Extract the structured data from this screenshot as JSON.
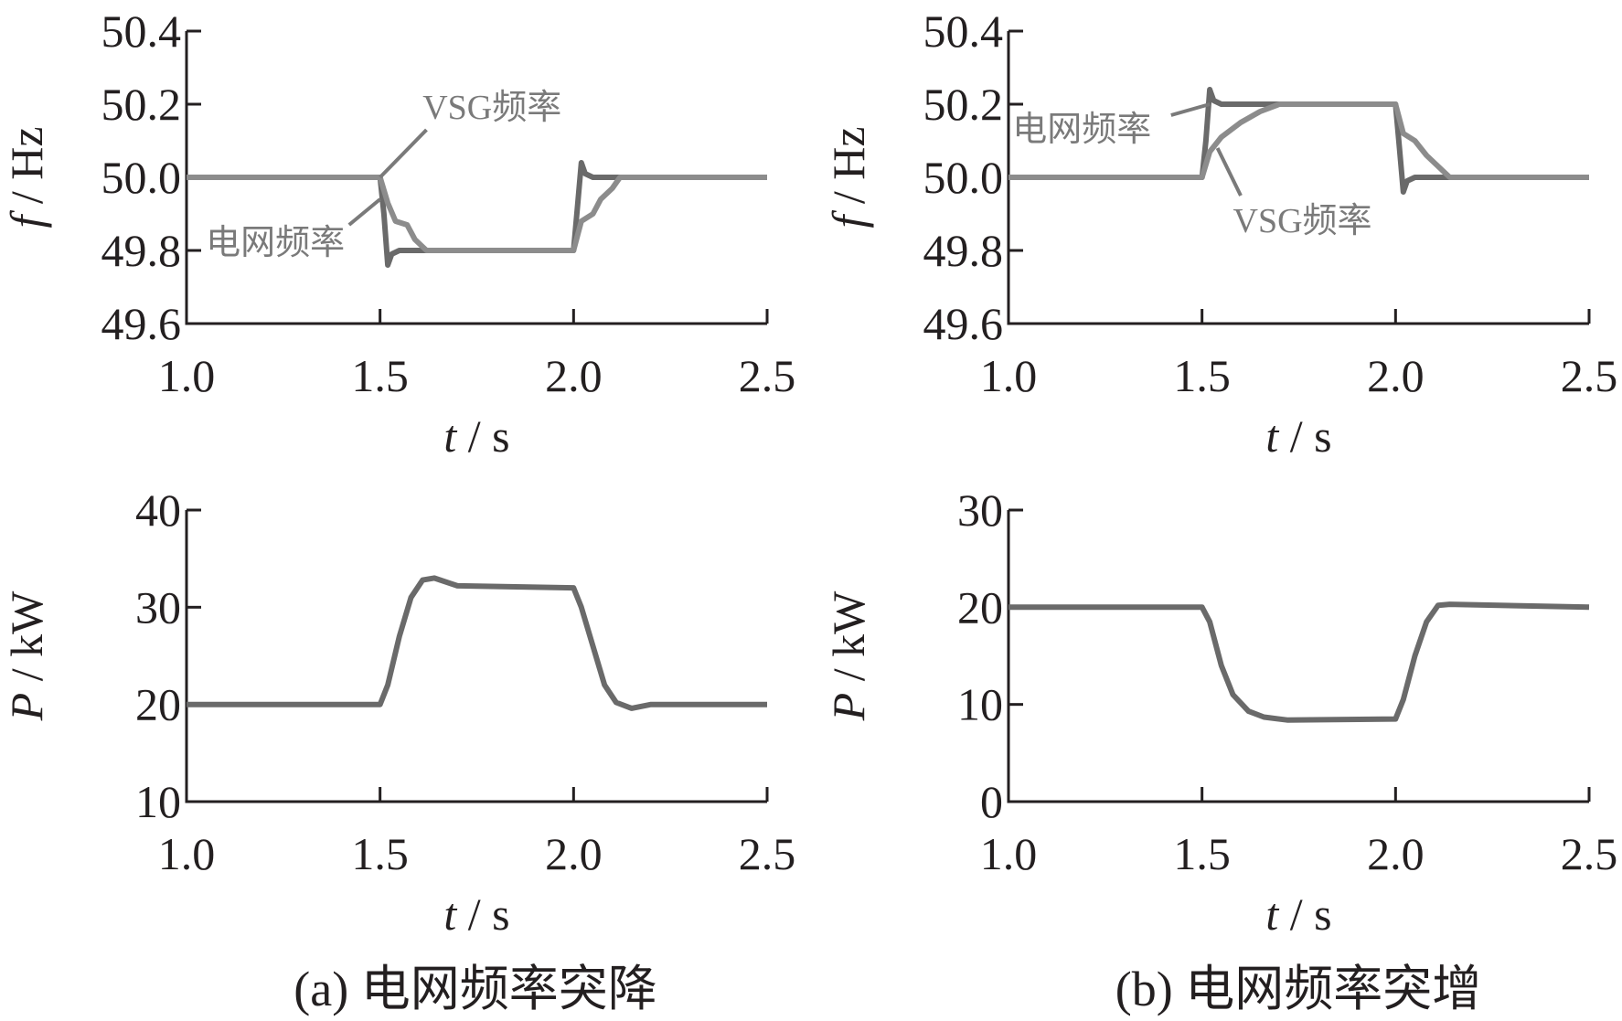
{
  "colors": {
    "axis": "#231f20",
    "grid_series": "#6a6a6a",
    "vsg_series": "#8c8c8c",
    "annotation": "#7a7a7a"
  },
  "captions": {
    "a": "(a)  电网频率突降",
    "b": "(b)  电网频率突增"
  },
  "chart_data": [
    {
      "id": "a-frequency",
      "type": "line",
      "xlabel_var": "t",
      "xlabel_unit": " / s",
      "ylabel_var": "f",
      "ylabel_unit": " / Hz",
      "xlim": [
        1.0,
        2.5
      ],
      "ylim": [
        49.6,
        50.4
      ],
      "xticks": [
        "1.0",
        "1.5",
        "2.0",
        "2.5"
      ],
      "yticks": [
        "49.6",
        "49.8",
        "50.0",
        "50.2",
        "50.4"
      ],
      "grid": false,
      "annotations": [
        {
          "text": "VSG频率"
        },
        {
          "text": "电网频率"
        }
      ],
      "series": [
        {
          "name": "电网频率",
          "x": [
            1.0,
            1.5,
            1.51,
            1.52,
            1.53,
            1.55,
            1.6,
            2.0,
            2.01,
            2.02,
            2.03,
            2.05,
            2.5
          ],
          "y": [
            50.0,
            50.0,
            49.9,
            49.76,
            49.79,
            49.8,
            49.8,
            49.8,
            49.92,
            50.04,
            50.01,
            50.0,
            50.0
          ]
        },
        {
          "name": "VSG频率",
          "x": [
            1.0,
            1.5,
            1.52,
            1.54,
            1.57,
            1.59,
            1.62,
            2.0,
            2.02,
            2.05,
            2.07,
            2.1,
            2.12,
            2.5
          ],
          "y": [
            50.0,
            50.0,
            49.93,
            49.88,
            49.87,
            49.83,
            49.8,
            49.8,
            49.88,
            49.9,
            49.94,
            49.97,
            50.0,
            50.0
          ]
        }
      ]
    },
    {
      "id": "b-frequency",
      "type": "line",
      "xlabel_var": "t",
      "xlabel_unit": " / s",
      "ylabel_var": "f",
      "ylabel_unit": " / Hz",
      "xlim": [
        1.0,
        2.5
      ],
      "ylim": [
        49.6,
        50.4
      ],
      "xticks": [
        "1.0",
        "1.5",
        "2.0",
        "2.5"
      ],
      "yticks": [
        "49.6",
        "49.8",
        "50.0",
        "50.2",
        "50.4"
      ],
      "grid": false,
      "annotations": [
        {
          "text": "电网频率"
        },
        {
          "text": "VSG频率"
        }
      ],
      "series": [
        {
          "name": "电网频率",
          "x": [
            1.0,
            1.5,
            1.51,
            1.52,
            1.53,
            1.55,
            1.6,
            2.0,
            2.01,
            2.02,
            2.03,
            2.05,
            2.5
          ],
          "y": [
            50.0,
            50.0,
            50.1,
            50.24,
            50.21,
            50.2,
            50.2,
            50.2,
            50.08,
            49.96,
            49.99,
            50.0,
            50.0
          ]
        },
        {
          "name": "VSG频率",
          "x": [
            1.0,
            1.5,
            1.52,
            1.55,
            1.6,
            1.65,
            1.7,
            2.0,
            2.02,
            2.05,
            2.08,
            2.11,
            2.14,
            2.5
          ],
          "y": [
            50.0,
            50.0,
            50.07,
            50.11,
            50.15,
            50.18,
            50.2,
            50.2,
            50.12,
            50.1,
            50.06,
            50.03,
            50.0,
            50.0
          ]
        }
      ]
    },
    {
      "id": "a-power",
      "type": "line",
      "xlabel_var": "t",
      "xlabel_unit": " / s",
      "ylabel_var": "P",
      "ylabel_unit": " / kW",
      "xlim": [
        1.0,
        2.5
      ],
      "ylim": [
        10,
        40
      ],
      "xticks": [
        "1.0",
        "1.5",
        "2.0",
        "2.5"
      ],
      "yticks": [
        "10",
        "20",
        "30",
        "40"
      ],
      "grid": false,
      "series": [
        {
          "name": "P",
          "x": [
            1.0,
            1.5,
            1.52,
            1.55,
            1.58,
            1.61,
            1.64,
            1.7,
            2.0,
            2.02,
            2.05,
            2.08,
            2.11,
            2.15,
            2.2,
            2.5
          ],
          "y": [
            20,
            20,
            22,
            27,
            31,
            32.8,
            33,
            32.2,
            32,
            30,
            26,
            22,
            20.2,
            19.6,
            20,
            20
          ]
        }
      ]
    },
    {
      "id": "b-power",
      "type": "line",
      "xlabel_var": "t",
      "xlabel_unit": " / s",
      "ylabel_var": "P",
      "ylabel_unit": " / kW",
      "xlim": [
        1.0,
        2.5
      ],
      "ylim": [
        0,
        30
      ],
      "xticks": [
        "1.0",
        "1.5",
        "2.0",
        "2.5"
      ],
      "yticks": [
        "0",
        "10",
        "20",
        "30"
      ],
      "grid": false,
      "series": [
        {
          "name": "P",
          "x": [
            1.0,
            1.5,
            1.52,
            1.55,
            1.58,
            1.62,
            1.66,
            1.72,
            2.0,
            2.02,
            2.05,
            2.08,
            2.11,
            2.14,
            2.5
          ],
          "y": [
            20,
            20,
            18.5,
            14,
            11,
            9.3,
            8.7,
            8.4,
            8.5,
            10.5,
            15,
            18.5,
            20.2,
            20.3,
            20
          ]
        }
      ]
    }
  ]
}
